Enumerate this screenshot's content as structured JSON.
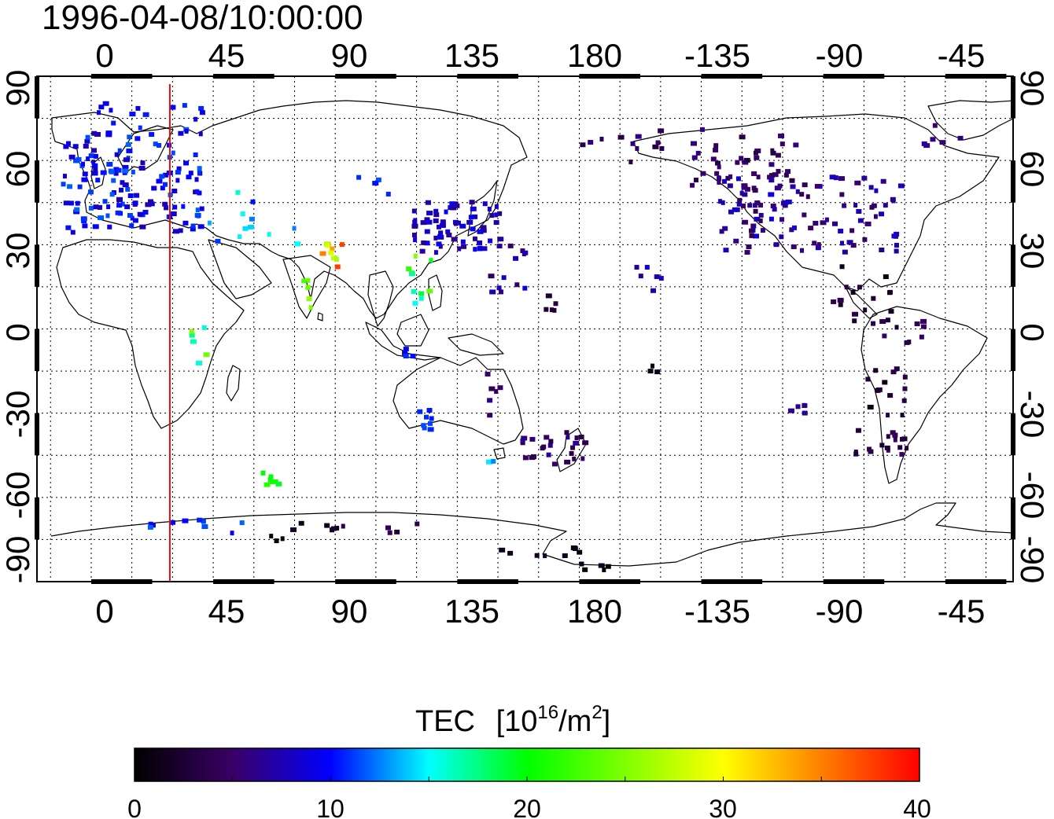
{
  "timestamp": "1996-04-08/10:00:00",
  "map": {
    "lon_ticks": [
      "0",
      "45",
      "90",
      "135",
      "180",
      "-135",
      "-90",
      "-45"
    ],
    "lat_ticks_left": [
      "90",
      "60",
      "30",
      "0",
      "-30",
      "-60",
      "-90"
    ],
    "lat_ticks_right": [
      "90",
      "60",
      "30",
      "0",
      "-30",
      "-60",
      "-90"
    ],
    "lon_range": [
      -20,
      340
    ],
    "lat_range": [
      -90,
      90
    ],
    "grid": "dotted every 15 degrees",
    "terminator_line_lon": 29,
    "terminator_color": "#dd1010"
  },
  "colorbar": {
    "title": "TEC",
    "unit_base": "[10",
    "unit_exp": "16",
    "unit_mid": "/m",
    "unit_exp2": "2",
    "unit_end": "]",
    "ticks": [
      "0",
      "10",
      "20",
      "30",
      "40"
    ],
    "range": [
      0,
      40
    ],
    "colors": [
      "#000000",
      "#3a0066",
      "#0000ff",
      "#00ffff",
      "#00ff00",
      "#ffff00",
      "#ff0000"
    ]
  }
}
